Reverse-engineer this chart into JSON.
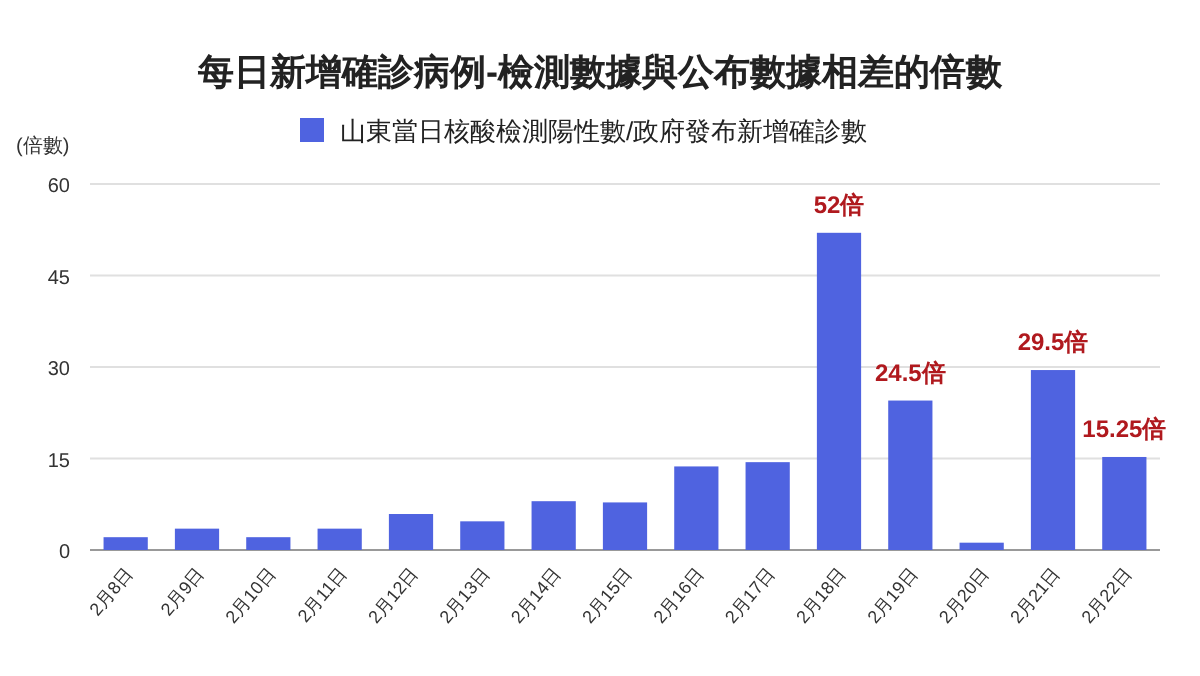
{
  "chart_data": {
    "type": "bar",
    "title": "每日新增確診病例-檢測數據與公布數據相差的倍數",
    "ylabel": "(倍數)",
    "categories": [
      "2月8日",
      "2月9日",
      "2月10日",
      "2月11日",
      "2月12日",
      "2月13日",
      "2月14日",
      "2月15日",
      "2月16日",
      "2月17日",
      "2月18日",
      "2月19日",
      "2月20日",
      "2月21日",
      "2月22日"
    ],
    "series": [
      {
        "name": "山東當日核酸檢測陽性數/政府發布新增確診數",
        "color": "#4f63e0",
        "values": [
          2.1,
          3.5,
          2.1,
          3.5,
          5.9,
          4.7,
          8.0,
          7.8,
          13.7,
          14.4,
          52,
          24.5,
          1.2,
          29.5,
          15.25
        ],
        "value_labels": [
          null,
          null,
          null,
          null,
          null,
          null,
          null,
          null,
          null,
          null,
          "52倍",
          "24.5倍",
          null,
          "29.5倍",
          "15.25倍"
        ]
      }
    ],
    "ylim": [
      0,
      60
    ],
    "yticks": [
      0,
      15,
      30,
      45,
      60
    ],
    "grid": "y",
    "legend": "top"
  }
}
